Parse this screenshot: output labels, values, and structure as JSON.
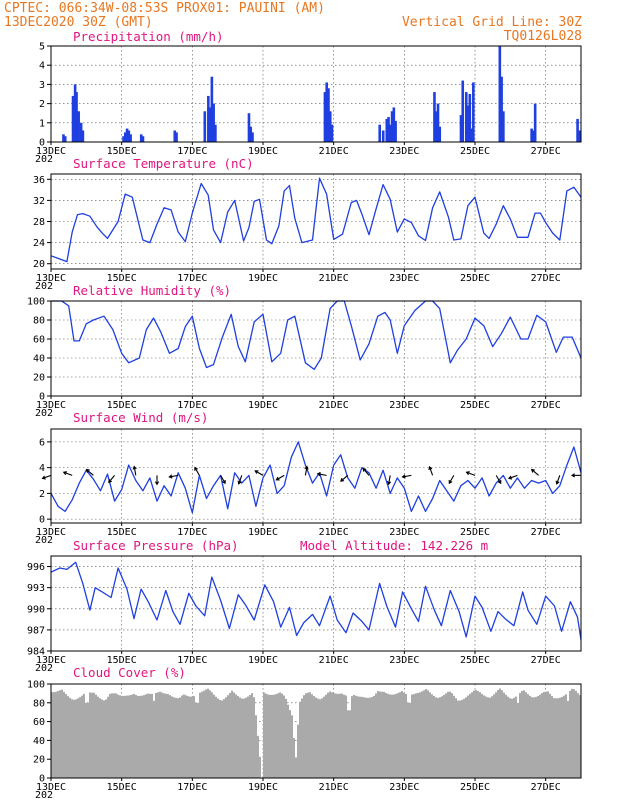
{
  "header": {
    "line1_left": "CPTEC:   066:34W-08:53S   PROX01: PAUINI (AM)",
    "line2_left": "13DEC2020 30Z (GMT)",
    "line2_right": "Vertical Grid Line: 30Z",
    "line3_right": "TQ0126L028"
  },
  "colors": {
    "header": "#e87722",
    "panel_title": "#e0157f",
    "series": "#1f3fe0",
    "cloud": "#aaaaaa",
    "arrow": "#000000"
  },
  "x_axis": {
    "day_labels": [
      "13DEC",
      "15DEC",
      "17DEC",
      "19DEC",
      "21DEC",
      "23DEC",
      "25DEC",
      "27DEC"
    ],
    "year_stub": "202",
    "range_days": [
      13,
      28
    ]
  },
  "chart_data": [
    {
      "type": "bar",
      "title": "Precipitation (mm/h)",
      "ylim": [
        0,
        5
      ],
      "yticks": [
        "0",
        "1",
        "2",
        "3",
        "4",
        "5"
      ],
      "x_unit": "day of December 2020",
      "x": [
        13.35,
        13.4,
        13.62,
        13.68,
        13.72,
        13.78,
        13.85,
        13.9,
        15.05,
        15.1,
        15.15,
        15.2,
        15.25,
        15.55,
        15.6,
        16.5,
        16.55,
        17.35,
        17.45,
        17.5,
        17.55,
        17.6,
        17.65,
        18.6,
        18.65,
        18.7,
        20.75,
        20.8,
        20.85,
        20.9,
        20.95,
        22.3,
        22.4,
        22.5,
        22.55,
        22.6,
        22.65,
        22.7,
        22.75,
        23.85,
        23.9,
        23.95,
        24.0,
        24.6,
        24.65,
        24.75,
        24.8,
        24.85,
        24.9,
        24.95,
        25.7,
        25.75,
        25.8,
        26.6,
        26.65,
        26.7,
        27.9,
        27.95
      ],
      "values": [
        0.4,
        0.3,
        2.4,
        3.0,
        2.6,
        1.6,
        1.0,
        0.6,
        0.3,
        0.5,
        0.7,
        0.6,
        0.4,
        0.4,
        0.3,
        0.6,
        0.5,
        1.6,
        2.4,
        1.8,
        3.4,
        2.0,
        0.9,
        1.5,
        0.8,
        0.5,
        2.6,
        3.1,
        2.8,
        1.6,
        0.9,
        0.9,
        0.6,
        1.2,
        1.3,
        0.9,
        1.6,
        1.8,
        1.1,
        2.6,
        1.6,
        2.0,
        0.8,
        1.4,
        3.2,
        2.6,
        1.9,
        2.5,
        0.7,
        3.1,
        5.0,
        3.4,
        1.6,
        0.7,
        0.6,
        2.0,
        1.2,
        0.6
      ]
    },
    {
      "type": "line",
      "title": "Surface Temperature (nC)",
      "ylim": [
        19,
        37
      ],
      "yticks": [
        "20",
        "24",
        "28",
        "32",
        "36"
      ],
      "x": [
        13.0,
        13.2,
        13.45,
        13.6,
        13.75,
        13.9,
        14.1,
        14.3,
        14.45,
        14.6,
        14.9,
        15.1,
        15.3,
        15.5,
        15.6,
        15.8,
        16.0,
        16.2,
        16.4,
        16.6,
        16.8,
        17.0,
        17.25,
        17.45,
        17.6,
        17.8,
        18.0,
        18.2,
        18.45,
        18.6,
        18.75,
        18.9,
        19.1,
        19.25,
        19.45,
        19.6,
        19.75,
        19.9,
        20.1,
        20.4,
        20.6,
        20.8,
        21.0,
        21.25,
        21.5,
        21.65,
        21.8,
        22.0,
        22.2,
        22.4,
        22.6,
        22.8,
        23.0,
        23.2,
        23.4,
        23.6,
        23.8,
        24.0,
        24.25,
        24.4,
        24.6,
        24.8,
        25.0,
        25.25,
        25.4,
        25.6,
        25.8,
        26.0,
        26.2,
        26.5,
        26.7,
        26.85,
        27.0,
        27.2,
        27.4,
        27.6,
        27.8,
        28.0
      ],
      "values": [
        21.5,
        21.0,
        20.4,
        26.0,
        29.3,
        29.5,
        29.0,
        27.0,
        25.8,
        24.8,
        28.0,
        33.2,
        32.6,
        27.2,
        24.5,
        24.0,
        27.5,
        30.6,
        30.2,
        26.0,
        24.2,
        29.6,
        35.2,
        33.0,
        26.4,
        24.0,
        29.8,
        32.0,
        24.3,
        26.8,
        31.8,
        32.2,
        24.5,
        23.8,
        27.2,
        33.8,
        34.8,
        28.6,
        24.0,
        24.5,
        36.2,
        33.2,
        24.6,
        25.6,
        31.6,
        32.0,
        29.4,
        25.5,
        30.4,
        35.0,
        32.2,
        26.0,
        28.5,
        27.8,
        25.3,
        24.4,
        30.6,
        33.6,
        28.8,
        24.5,
        24.7,
        31.0,
        32.6,
        25.8,
        24.8,
        27.5,
        31.0,
        28.5,
        25.0,
        25.0,
        29.6,
        29.6,
        27.8,
        25.8,
        24.5,
        33.8,
        34.5,
        32.6
      ]
    },
    {
      "type": "line",
      "title": "Relative Humidity (%)",
      "ylim": [
        0,
        100
      ],
      "yticks": [
        "0",
        "20",
        "40",
        "60",
        "80",
        "100"
      ],
      "x": [
        13.0,
        13.3,
        13.5,
        13.65,
        13.8,
        14.0,
        14.2,
        14.5,
        14.75,
        15.0,
        15.2,
        15.5,
        15.7,
        15.9,
        16.1,
        16.35,
        16.6,
        16.8,
        17.0,
        17.2,
        17.4,
        17.6,
        17.85,
        18.1,
        18.3,
        18.5,
        18.75,
        19.0,
        19.25,
        19.5,
        19.7,
        19.9,
        20.2,
        20.45,
        20.65,
        20.9,
        21.1,
        21.3,
        21.5,
        21.75,
        22.0,
        22.25,
        22.45,
        22.6,
        22.8,
        23.0,
        23.3,
        23.6,
        23.8,
        24.0,
        24.3,
        24.5,
        24.75,
        25.0,
        25.25,
        25.5,
        25.75,
        26.0,
        26.3,
        26.5,
        26.75,
        27.0,
        27.3,
        27.5,
        27.75,
        28.0
      ],
      "values": [
        100,
        100,
        95,
        58,
        58,
        76,
        80,
        84,
        70,
        45,
        35,
        40,
        70,
        82,
        68,
        45,
        50,
        73,
        84,
        50,
        30,
        33,
        62,
        86,
        52,
        36,
        78,
        86,
        36,
        45,
        80,
        84,
        35,
        28,
        40,
        92,
        100,
        100,
        74,
        38,
        55,
        84,
        88,
        80,
        45,
        74,
        90,
        100,
        100,
        92,
        35,
        48,
        60,
        82,
        74,
        52,
        66,
        83,
        60,
        60,
        85,
        78,
        46,
        62,
        62,
        40
      ]
    },
    {
      "type": "line",
      "title": "Surface Wind (m/s)",
      "ylim": [
        -0.3,
        7
      ],
      "yticks": [
        "0",
        "2",
        "4",
        "6"
      ],
      "x": [
        13.0,
        13.2,
        13.4,
        13.6,
        13.8,
        14.0,
        14.2,
        14.4,
        14.6,
        14.8,
        15.0,
        15.2,
        15.4,
        15.6,
        15.8,
        16.0,
        16.2,
        16.4,
        16.6,
        16.8,
        17.0,
        17.2,
        17.4,
        17.6,
        17.8,
        18.0,
        18.2,
        18.4,
        18.6,
        18.8,
        19.0,
        19.2,
        19.4,
        19.6,
        19.8,
        20.0,
        20.2,
        20.4,
        20.6,
        20.8,
        21.0,
        21.2,
        21.4,
        21.6,
        21.8,
        22.0,
        22.2,
        22.4,
        22.6,
        22.8,
        23.0,
        23.2,
        23.4,
        23.6,
        23.8,
        24.0,
        24.2,
        24.4,
        24.6,
        24.8,
        25.0,
        25.2,
        25.4,
        25.6,
        25.8,
        26.0,
        26.2,
        26.4,
        26.6,
        26.8,
        27.0,
        27.2,
        27.4,
        27.6,
        27.8,
        28.0
      ],
      "values": [
        2.0,
        1.0,
        0.6,
        1.5,
        2.8,
        3.8,
        3.1,
        2.2,
        3.5,
        1.4,
        2.3,
        4.2,
        3.0,
        2.2,
        3.2,
        1.4,
        2.6,
        1.8,
        3.6,
        2.4,
        0.5,
        3.4,
        1.6,
        2.6,
        3.4,
        0.8,
        3.6,
        2.8,
        3.4,
        1.0,
        3.2,
        4.2,
        2.0,
        2.6,
        4.8,
        6.0,
        4.2,
        2.8,
        3.6,
        1.8,
        4.2,
        5.0,
        3.2,
        2.4,
        4.0,
        3.6,
        2.4,
        3.8,
        2.0,
        3.2,
        2.4,
        0.6,
        1.8,
        0.6,
        1.6,
        3.0,
        2.2,
        1.4,
        2.6,
        3.0,
        2.4,
        3.2,
        1.8,
        2.8,
        3.4,
        2.4,
        3.2,
        2.4,
        3.0,
        2.8,
        3.0,
        2.0,
        2.6,
        4.2,
        5.6,
        3.6
      ]
    },
    {
      "type": "line",
      "title": "Surface Pressure (hPa)",
      "annotation": "Model Altitude: 142.226 m",
      "ylim": [
        984,
        997.5
      ],
      "yticks": [
        "984",
        "987",
        "990",
        "993",
        "996"
      ],
      "x": [
        13.0,
        13.25,
        13.45,
        13.7,
        13.9,
        14.1,
        14.25,
        14.45,
        14.7,
        14.9,
        15.15,
        15.35,
        15.55,
        15.75,
        16.0,
        16.25,
        16.45,
        16.65,
        16.9,
        17.1,
        17.35,
        17.55,
        17.8,
        18.05,
        18.3,
        18.5,
        18.75,
        19.05,
        19.3,
        19.5,
        19.75,
        19.95,
        20.15,
        20.4,
        20.6,
        20.9,
        21.1,
        21.35,
        21.55,
        21.8,
        22.0,
        22.3,
        22.5,
        22.75,
        22.95,
        23.2,
        23.4,
        23.6,
        23.85,
        24.05,
        24.3,
        24.55,
        24.75,
        25.0,
        25.2,
        25.45,
        25.65,
        25.85,
        26.1,
        26.35,
        26.5,
        26.75,
        27.0,
        27.25,
        27.45,
        27.7,
        27.9,
        28.0
      ],
      "values": [
        995.2,
        995.8,
        995.6,
        996.6,
        993.6,
        989.8,
        993.0,
        992.4,
        991.6,
        995.8,
        992.8,
        988.6,
        992.8,
        991.0,
        988.4,
        992.6,
        989.6,
        987.8,
        992.2,
        990.4,
        989.0,
        994.5,
        991.2,
        987.2,
        992.0,
        990.6,
        988.4,
        993.4,
        991.0,
        987.4,
        990.2,
        986.2,
        988.0,
        989.2,
        987.6,
        991.8,
        988.4,
        986.6,
        989.4,
        988.2,
        987.0,
        993.6,
        990.4,
        987.4,
        992.4,
        990.0,
        988.2,
        993.2,
        989.8,
        987.6,
        992.6,
        989.6,
        986.0,
        991.8,
        990.2,
        986.8,
        989.6,
        988.6,
        987.6,
        992.4,
        989.8,
        987.8,
        991.8,
        990.4,
        986.8,
        991.0,
        988.8,
        985.6
      ]
    },
    {
      "type": "area",
      "title": "Cloud Cover (%)",
      "ylim": [
        0,
        100
      ],
      "yticks": [
        "0",
        "20",
        "40",
        "60",
        "80",
        "100"
      ],
      "x": [
        13.0,
        13.3,
        13.6,
        13.9,
        14.2,
        14.5,
        14.8,
        15.1,
        15.4,
        15.7,
        16.0,
        16.3,
        16.6,
        16.9,
        17.2,
        17.5,
        17.8,
        18.1,
        18.4,
        18.7,
        18.95,
        19.0,
        19.3,
        19.6,
        19.8,
        19.9,
        20.0,
        20.3,
        20.6,
        20.9,
        21.2,
        21.5,
        21.8,
        22.1,
        22.4,
        22.7,
        23.0,
        23.3,
        23.6,
        23.9,
        24.2,
        24.5,
        24.8,
        25.1,
        25.4,
        25.7,
        26.0,
        26.3,
        26.6,
        26.9,
        27.2,
        27.5,
        27.8,
        28.0
      ],
      "values": [
        97,
        94,
        89,
        91,
        96,
        86,
        94,
        93,
        89,
        96,
        92,
        95,
        88,
        91,
        96,
        95,
        88,
        93,
        90,
        94,
        2,
        96,
        93,
        90,
        72,
        24,
        84,
        95,
        89,
        93,
        96,
        88,
        92,
        90,
        96,
        94,
        92,
        96,
        95,
        91,
        94,
        87,
        93,
        95,
        91,
        96,
        90,
        94,
        91,
        95,
        89,
        93,
        96,
        92
      ],
      "dips": [
        [
          14.0,
          80
        ],
        [
          15.9,
          82
        ],
        [
          17.1,
          80
        ],
        [
          21.4,
          72
        ],
        [
          23.1,
          80
        ],
        [
          26.2,
          80
        ],
        [
          27.6,
          82
        ]
      ]
    }
  ],
  "panel_tags": [
    "precip",
    "temperature",
    "humidity",
    "wind",
    "pressure",
    "cloud"
  ]
}
